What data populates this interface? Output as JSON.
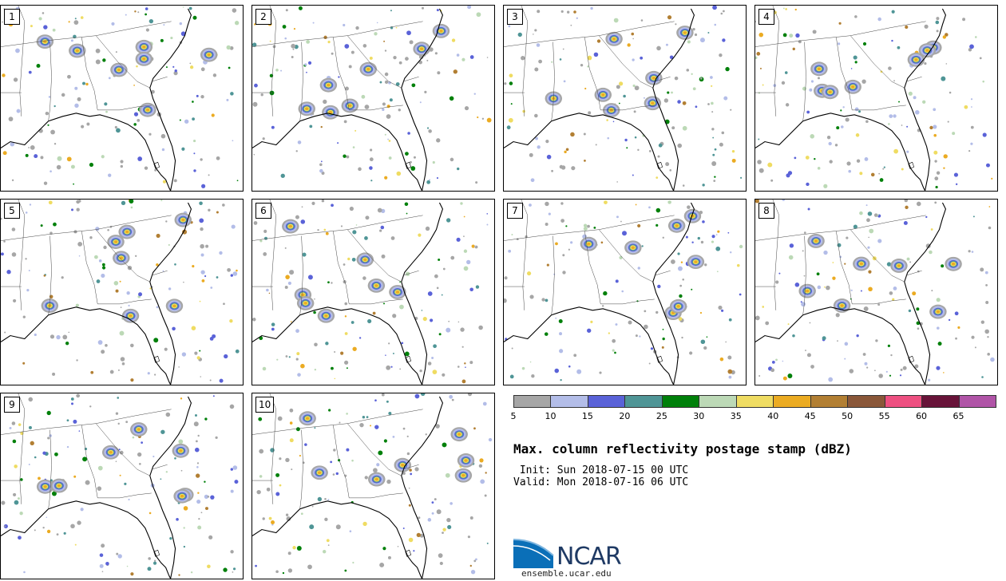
{
  "panels": [
    {
      "label": "1",
      "seed": 11
    },
    {
      "label": "2",
      "seed": 23
    },
    {
      "label": "3",
      "seed": 37
    },
    {
      "label": "4",
      "seed": 41
    },
    {
      "label": "5",
      "seed": 53
    },
    {
      "label": "6",
      "seed": 67
    },
    {
      "label": "7",
      "seed": 71
    },
    {
      "label": "8",
      "seed": 83
    },
    {
      "label": "9",
      "seed": 97
    },
    {
      "label": "10",
      "seed": 103
    }
  ],
  "colorbar": {
    "colors": [
      "#a6a6a6",
      "#b3bde8",
      "#5a62d8",
      "#4f9596",
      "#00800a",
      "#bcd9b6",
      "#efdc62",
      "#ebab22",
      "#b27f33",
      "#8a5739",
      "#ee5081",
      "#681339",
      "#b054a7"
    ],
    "ticks": [
      "5",
      "10",
      "15",
      "20",
      "25",
      "30",
      "35",
      "40",
      "45",
      "50",
      "55",
      "60",
      "65"
    ]
  },
  "title": "Max. column reflectivity postage stamp (dBZ)",
  "init": " Init: Sun 2018-07-15 00 UTC",
  "valid": "Valid: Mon 2018-07-16 06 UTC",
  "logo": {
    "name": "NCAR",
    "url": "ensemble.ucar.edu"
  }
}
